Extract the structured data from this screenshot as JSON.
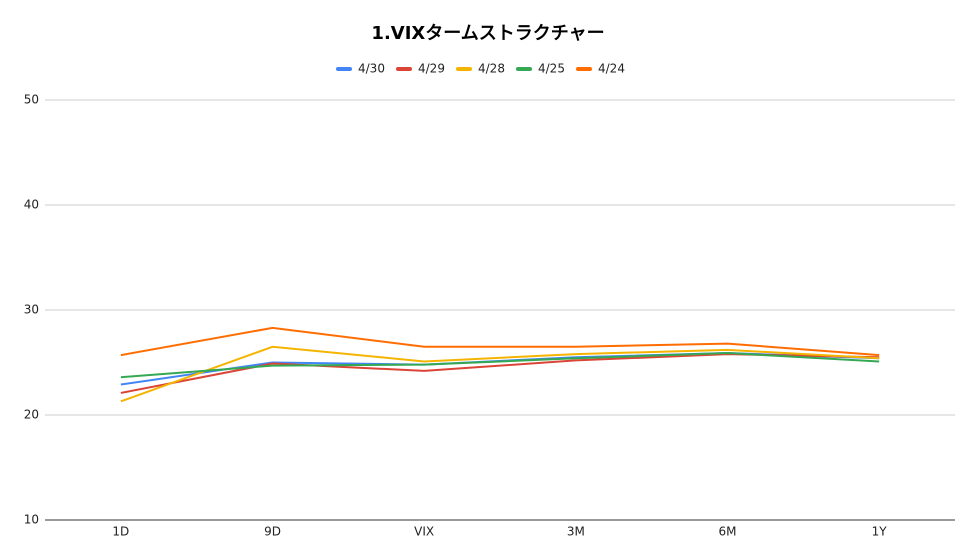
{
  "chart_data": {
    "type": "line",
    "title": "1.VIXタームストラクチャー",
    "categories": [
      "1D",
      "9D",
      "VIX",
      "3M",
      "6M",
      "1Y"
    ],
    "series": [
      {
        "name": "4/30",
        "color": "#4285f4",
        "values": [
          22.9,
          25.0,
          24.8,
          25.5,
          25.9,
          25.4
        ]
      },
      {
        "name": "4/29",
        "color": "#db4437",
        "values": [
          22.1,
          24.9,
          24.2,
          25.2,
          25.8,
          25.5
        ]
      },
      {
        "name": "4/28",
        "color": "#f4b400",
        "values": [
          21.3,
          26.5,
          25.1,
          25.8,
          26.2,
          25.4
        ]
      },
      {
        "name": "4/25",
        "color": "#34a853",
        "values": [
          23.6,
          24.7,
          24.8,
          25.4,
          25.9,
          25.1
        ]
      },
      {
        "name": "4/24",
        "color": "#ff6d01",
        "values": [
          25.7,
          28.3,
          26.5,
          26.5,
          26.8,
          25.7
        ]
      }
    ],
    "ylim": [
      10,
      50
    ],
    "yticks": [
      10,
      20,
      30,
      40,
      50
    ],
    "grid": true,
    "legend": "top"
  }
}
